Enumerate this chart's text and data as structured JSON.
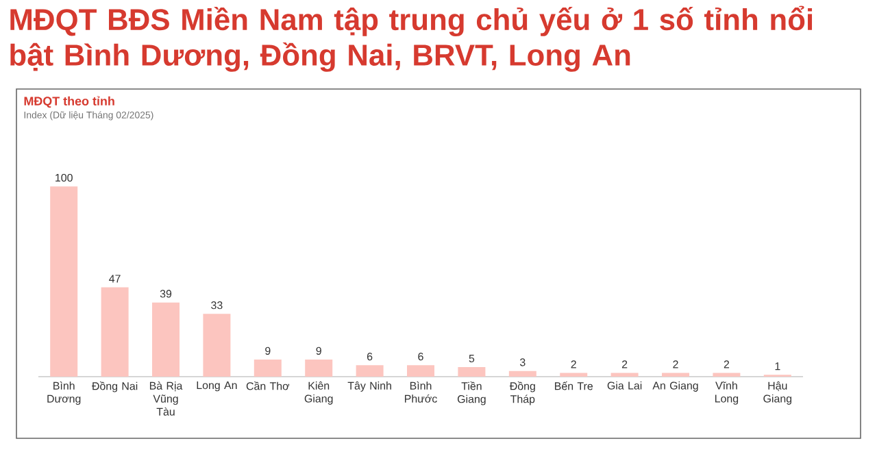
{
  "chart_data": {
    "type": "bar",
    "title": "MĐQT BĐS Miền Nam tập trung chủ yếu ở 1 số tỉnh nổi bật Bình Dương, Đồng Nai, BRVT, Long An",
    "subtitle": "MĐQT theo tỉnh",
    "annotations": [
      "Index (Dữ liệu Tháng 02/2025)"
    ],
    "categories": [
      "Bình Dương",
      "Đồng Nai",
      "Bà Rịa Vũng Tàu",
      "Long An",
      "Cần Thơ",
      "Kiên Giang",
      "Tây Ninh",
      "Bình Phước",
      "Tiền Giang",
      "Đồng Tháp",
      "Bến Tre",
      "Gia Lai",
      "An Giang",
      "Vĩnh Long",
      "Hậu Giang"
    ],
    "values": [
      100,
      47,
      39,
      33,
      9,
      9,
      6,
      6,
      5,
      3,
      2,
      2,
      2,
      2,
      1
    ],
    "color": "#fcc5bf",
    "data_labels": true
  }
}
